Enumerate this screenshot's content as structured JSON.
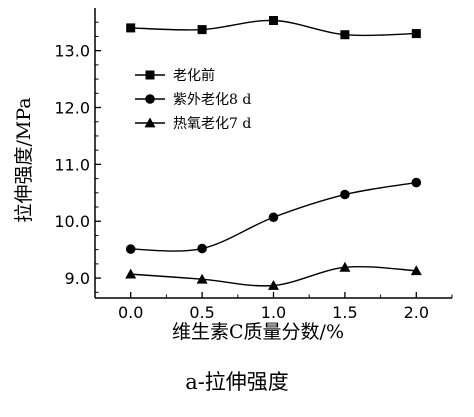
{
  "chart_data": {
    "type": "line",
    "x": [
      0.0,
      0.5,
      1.0,
      1.5,
      2.0
    ],
    "x_tick_labels": [
      "0.0",
      "0.5",
      "1.0",
      "1.5",
      "2.0"
    ],
    "y_tick_values": [
      9.0,
      10.0,
      11.0,
      12.0,
      13.0
    ],
    "y_tick_labels": [
      "9.0",
      "10.0",
      "11.0",
      "12.0",
      "13.0"
    ],
    "xlim": [
      -0.25,
      2.25
    ],
    "ylim": [
      8.65,
      13.75
    ],
    "xlabel": "维生素C质量分数/%",
    "ylabel": "拉伸强度/MPa",
    "caption": "a-拉伸强度",
    "grid": false,
    "legend_position": "upper-left",
    "series": [
      {
        "name": "老化前",
        "marker": "square",
        "values": [
          13.4,
          13.37,
          13.53,
          13.28,
          13.3
        ]
      },
      {
        "name": "紫外老化8 d",
        "marker": "circle",
        "values": [
          9.51,
          9.52,
          10.07,
          10.47,
          10.68
        ]
      },
      {
        "name": "热氧老化7 d",
        "marker": "triangle",
        "values": [
          9.07,
          8.98,
          8.87,
          9.19,
          9.13
        ]
      }
    ]
  }
}
